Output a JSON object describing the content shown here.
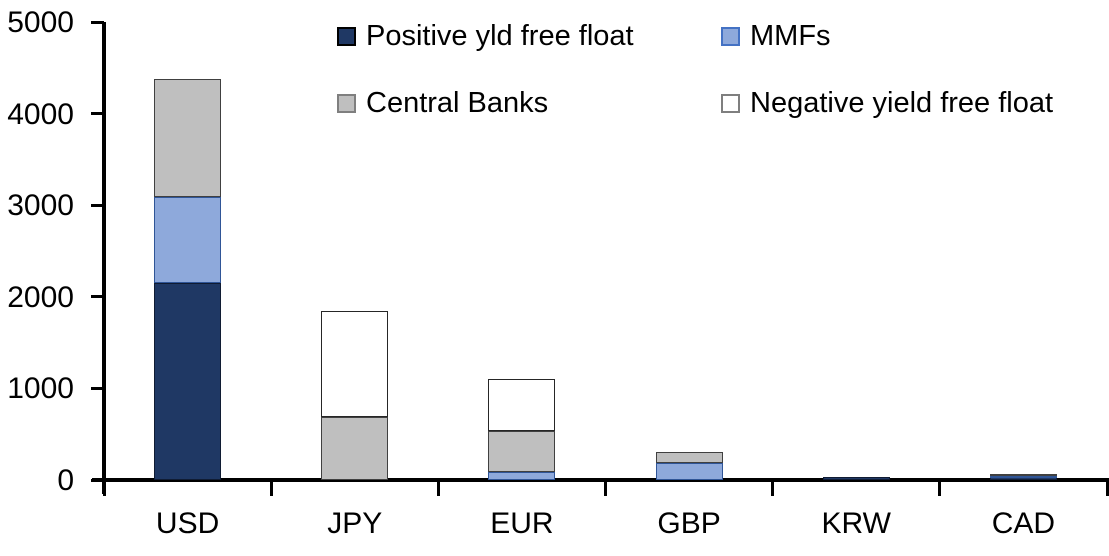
{
  "chart_data": {
    "type": "bar",
    "stacked": true,
    "title": "",
    "categories": [
      "USD",
      "JPY",
      "EUR",
      "GBP",
      "KRW",
      "CAD"
    ],
    "series": [
      {
        "name": "Positive yld free float",
        "color": "#1F3864",
        "border": "#101c33",
        "values": [
          2150,
          0,
          0,
          0,
          35,
          35
        ]
      },
      {
        "name": "MMFs",
        "color": "#8EA9DB",
        "border": "#2F5597",
        "values": [
          940,
          0,
          90,
          190,
          0,
          5
        ]
      },
      {
        "name": "Central Banks",
        "color": "#BFBFBF",
        "border": "#404040",
        "values": [
          1290,
          690,
          440,
          120,
          0,
          25
        ]
      },
      {
        "name": "Negative yield free float",
        "color": "#FFFFFF",
        "border": "#262626",
        "values": [
          0,
          1150,
          570,
          0,
          0,
          0
        ]
      }
    ],
    "totals": [
      4380,
      1840,
      1100,
      310,
      35,
      65
    ],
    "ylim": [
      0,
      5000
    ],
    "ytick_interval": 1000,
    "ytick_labels": [
      "0",
      "1000",
      "2000",
      "3000",
      "4000",
      "5000"
    ],
    "xlabel": "",
    "ylabel": "",
    "grid": false,
    "legend_position": "top",
    "legend_swatch_borders": [
      "#000000",
      "#4472C4",
      "#7F7F7F",
      "#7F7F7F"
    ],
    "axis_color": "#000000",
    "background_color": "#FFFFFF"
  }
}
